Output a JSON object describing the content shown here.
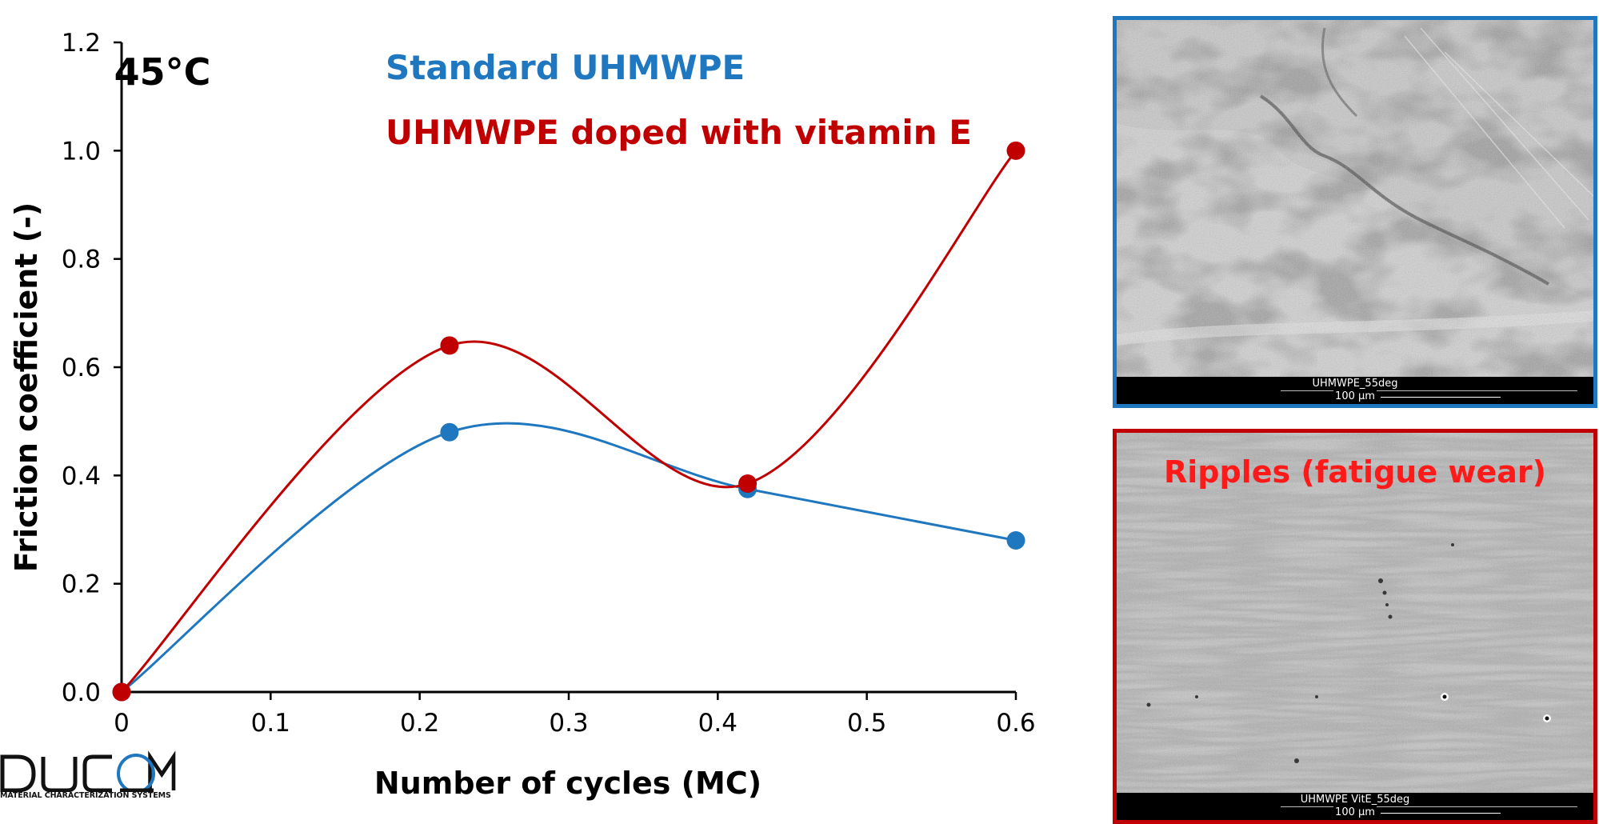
{
  "chart_data": {
    "type": "line",
    "xlabel": "Number of cycles (MC)",
    "ylabel": "Friction coefficient (-)",
    "xlim": [
      0,
      0.6
    ],
    "ylim": [
      0,
      1.2
    ],
    "xticks": [
      "0",
      "0.1",
      "0.2",
      "0.3",
      "0.4",
      "0.5",
      "0.6"
    ],
    "yticks": [
      "0.0",
      "0.2",
      "0.4",
      "0.6",
      "0.8",
      "1.0",
      "1.2"
    ],
    "grid": false,
    "annotation": "45°C",
    "series": [
      {
        "name": "Standard UHMWPE",
        "color": "#1F77C0",
        "smooth": true,
        "x": [
          0,
          0.22,
          0.42,
          0.6
        ],
        "y": [
          0,
          0.48,
          0.375,
          0.28
        ]
      },
      {
        "name": "UHMWPE doped with vitamin E",
        "color": "#C00000",
        "smooth": true,
        "x": [
          0,
          0.22,
          0.42,
          0.6
        ],
        "y": [
          0,
          0.64,
          0.385,
          1.0
        ]
      }
    ]
  },
  "micrographs": [
    {
      "id": "standard",
      "border_color": "#1F77C0",
      "sample_label": "UHMWPE_55deg",
      "scale_label": "100 µm",
      "caption": ""
    },
    {
      "id": "vitamin-e",
      "border_color": "#C00000",
      "sample_label": "UHMWPE VitE_55deg",
      "scale_label": "100 µm",
      "caption": "Ripples (fatigue wear)",
      "caption_color": "#FF1A1A"
    }
  ],
  "logo": {
    "name": "DUCOM",
    "tagline": "MATERIAL CHARACTERIZATION SYSTEMS",
    "color_main": "#111111",
    "color_ring": "#1F77C0"
  }
}
